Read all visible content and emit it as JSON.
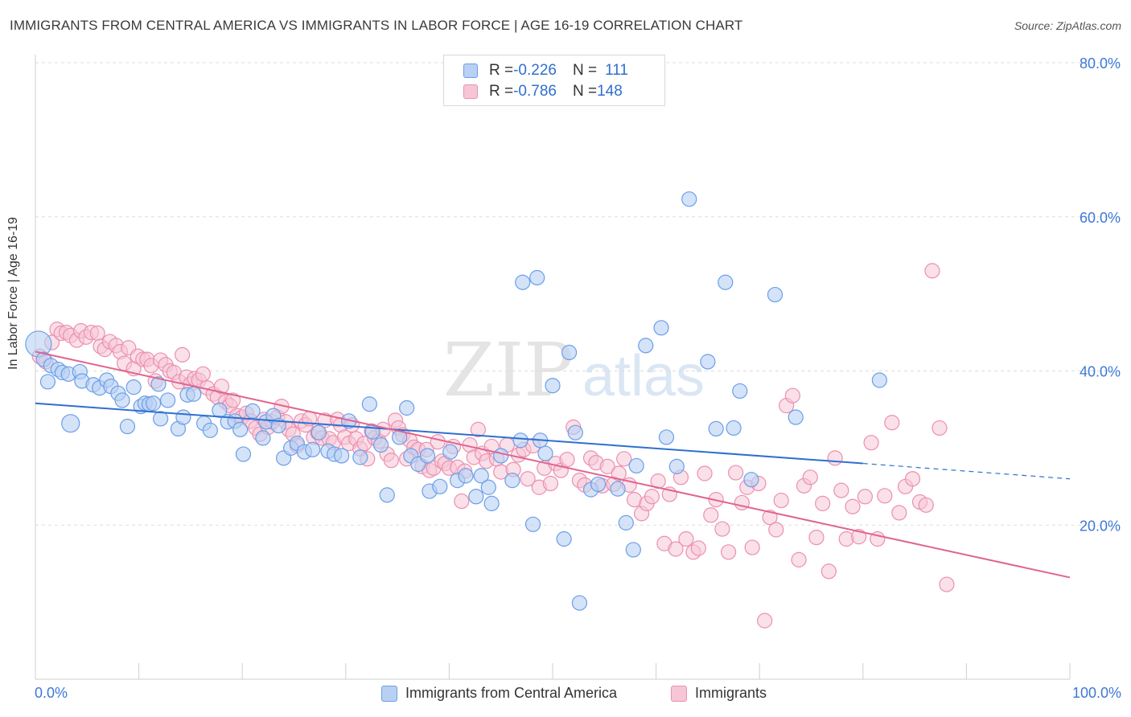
{
  "title": "IMMIGRANTS FROM CENTRAL AMERICA VS IMMIGRANTS IN LABOR FORCE | AGE 16-19 CORRELATION CHART",
  "source": "Source: ZipAtlas.com",
  "watermark": {
    "zip": "ZIP",
    "atlas": "atlas"
  },
  "colors": {
    "blue": "#6b9ee8",
    "blue_fill": "#b8d0f3",
    "blue_line": "#2f6fd0",
    "pink": "#ec8fb0",
    "pink_fill": "#f6c6d6",
    "pink_line": "#e0648f",
    "tick_text": "#3d78d6",
    "grid": "#dddddd"
  },
  "legend_top": {
    "rows": [
      {
        "r_label": "R = ",
        "r_value": "-0.226",
        "n_label": "N = ",
        "n_value": "111"
      },
      {
        "r_label": "R = ",
        "r_value": "-0.786",
        "n_label": "N = ",
        "n_value": "148"
      }
    ]
  },
  "chart_data": {
    "type": "scatter",
    "ylabel": "In Labor Force | Age 16-19",
    "xlim": [
      0,
      100
    ],
    "ylim": [
      0,
      80
    ],
    "x_tick_labels": [
      "0.0%",
      "100.0%"
    ],
    "y_tick_labels": [
      "20.0%",
      "40.0%",
      "60.0%",
      "80.0%"
    ],
    "y_ticks": [
      20,
      40,
      60,
      80
    ],
    "grid": "horizontal dashed",
    "legend": [
      "Immigrants from Central America",
      "Immigrants"
    ],
    "series": [
      {
        "name": "Immigrants from Central America",
        "color": "#6b9ee8",
        "trend": {
          "x1": 0,
          "y1": 35.8,
          "x2": 80,
          "y2": 28.0,
          "dashed_to_x": 100,
          "dashed_to_y": 26.0
        },
        "points": [
          [
            0.3,
            43.5
          ],
          [
            0.8,
            41.5
          ],
          [
            1.5,
            40.7
          ],
          [
            2.2,
            40.2
          ],
          [
            2.6,
            39.8
          ],
          [
            1.2,
            38.6
          ],
          [
            3.2,
            39.6
          ],
          [
            4.3,
            39.9
          ],
          [
            4.5,
            38.7
          ],
          [
            5.6,
            38.2
          ],
          [
            6.2,
            37.8
          ],
          [
            6.9,
            38.8
          ],
          [
            7.3,
            38.0
          ],
          [
            8.0,
            37.1
          ],
          [
            8.4,
            36.2
          ],
          [
            8.9,
            32.8
          ],
          [
            9.5,
            37.9
          ],
          [
            10.2,
            35.4
          ],
          [
            10.6,
            35.8
          ],
          [
            11.0,
            35.7
          ],
          [
            11.4,
            35.8
          ],
          [
            11.9,
            38.3
          ],
          [
            12.1,
            33.8
          ],
          [
            12.8,
            36.2
          ],
          [
            13.8,
            32.5
          ],
          [
            14.3,
            34.0
          ],
          [
            14.7,
            36.9
          ],
          [
            15.3,
            37.0
          ],
          [
            16.3,
            33.2
          ],
          [
            16.9,
            32.3
          ],
          [
            17.8,
            34.9
          ],
          [
            18.6,
            33.4
          ],
          [
            19.3,
            33.5
          ],
          [
            19.8,
            32.4
          ],
          [
            20.1,
            29.2
          ],
          [
            21.0,
            34.8
          ],
          [
            22.0,
            31.3
          ],
          [
            22.3,
            33.4
          ],
          [
            23.0,
            34.2
          ],
          [
            23.5,
            32.9
          ],
          [
            24.0,
            28.7
          ],
          [
            24.7,
            30.0
          ],
          [
            25.3,
            30.6
          ],
          [
            26.0,
            29.5
          ],
          [
            26.8,
            29.8
          ],
          [
            27.4,
            32.0
          ],
          [
            28.3,
            29.6
          ],
          [
            28.9,
            29.2
          ],
          [
            29.6,
            29.0
          ],
          [
            30.3,
            33.5
          ],
          [
            31.4,
            28.8
          ],
          [
            32.3,
            35.7
          ],
          [
            32.6,
            32.1
          ],
          [
            33.4,
            30.4
          ],
          [
            34.0,
            23.9
          ],
          [
            35.2,
            31.4
          ],
          [
            35.9,
            35.2
          ],
          [
            36.3,
            29.0
          ],
          [
            37.0,
            27.9
          ],
          [
            37.9,
            29.0
          ],
          [
            38.1,
            24.4
          ],
          [
            39.1,
            25.0
          ],
          [
            40.1,
            29.5
          ],
          [
            40.8,
            25.8
          ],
          [
            41.6,
            26.4
          ],
          [
            42.6,
            23.7
          ],
          [
            43.1,
            26.4
          ],
          [
            43.8,
            24.9
          ],
          [
            44.1,
            22.8
          ],
          [
            45.0,
            29.0
          ],
          [
            46.1,
            25.8
          ],
          [
            46.9,
            31.0
          ],
          [
            47.1,
            51.5
          ],
          [
            48.1,
            20.1
          ],
          [
            48.5,
            52.1
          ],
          [
            48.8,
            31.0
          ],
          [
            49.3,
            29.3
          ],
          [
            50.0,
            38.1
          ],
          [
            51.1,
            18.2
          ],
          [
            51.6,
            42.4
          ],
          [
            52.2,
            32.0
          ],
          [
            52.6,
            9.9
          ],
          [
            53.7,
            24.6
          ],
          [
            54.4,
            25.3
          ],
          [
            56.3,
            24.7
          ],
          [
            57.1,
            20.3
          ],
          [
            57.8,
            16.8
          ],
          [
            58.1,
            27.7
          ],
          [
            59.0,
            43.3
          ],
          [
            60.5,
            45.6
          ],
          [
            61.0,
            31.4
          ],
          [
            62.0,
            27.6
          ],
          [
            63.2,
            62.3
          ],
          [
            65.0,
            41.2
          ],
          [
            65.8,
            32.5
          ],
          [
            66.7,
            51.5
          ],
          [
            67.5,
            32.6
          ],
          [
            68.1,
            37.4
          ],
          [
            69.2,
            25.9
          ],
          [
            71.5,
            49.9
          ],
          [
            73.5,
            34.0
          ],
          [
            81.6,
            38.8
          ]
        ]
      },
      {
        "name": "Immigrants",
        "color": "#ec8fb0",
        "trend": {
          "x1": 0,
          "y1": 42.5,
          "x2": 100,
          "y2": 13.2
        },
        "points": [
          [
            0.4,
            41.9
          ],
          [
            1.0,
            41.2
          ],
          [
            1.6,
            43.7
          ],
          [
            2.1,
            45.4
          ],
          [
            2.5,
            44.9
          ],
          [
            3.0,
            45.0
          ],
          [
            3.4,
            44.6
          ],
          [
            4.0,
            44.0
          ],
          [
            4.4,
            45.2
          ],
          [
            4.9,
            44.4
          ],
          [
            5.4,
            45.0
          ],
          [
            6.0,
            44.9
          ],
          [
            6.3,
            43.2
          ],
          [
            6.7,
            42.8
          ],
          [
            7.2,
            43.8
          ],
          [
            7.8,
            43.3
          ],
          [
            8.2,
            42.5
          ],
          [
            8.6,
            41.0
          ],
          [
            9.0,
            43.0
          ],
          [
            9.5,
            40.3
          ],
          [
            9.9,
            41.9
          ],
          [
            10.4,
            41.5
          ],
          [
            10.8,
            41.5
          ],
          [
            11.2,
            40.7
          ],
          [
            11.6,
            38.7
          ],
          [
            12.1,
            41.4
          ],
          [
            12.6,
            40.8
          ],
          [
            13.0,
            40.0
          ],
          [
            13.4,
            39.8
          ],
          [
            13.9,
            38.6
          ],
          [
            14.2,
            42.1
          ],
          [
            14.6,
            39.2
          ],
          [
            15.0,
            38.3
          ],
          [
            15.4,
            39.0
          ],
          [
            15.8,
            38.8
          ],
          [
            16.2,
            39.6
          ],
          [
            16.6,
            37.8
          ],
          [
            17.2,
            37.0
          ],
          [
            17.6,
            36.6
          ],
          [
            18.0,
            38.0
          ],
          [
            18.4,
            36.0
          ],
          [
            18.8,
            35.5
          ],
          [
            19.1,
            36.2
          ],
          [
            19.5,
            34.2
          ],
          [
            20.0,
            34.0
          ],
          [
            20.4,
            34.5
          ],
          [
            20.8,
            33.5
          ],
          [
            21.3,
            32.6
          ],
          [
            21.7,
            31.8
          ],
          [
            22.1,
            33.7
          ],
          [
            22.5,
            32.7
          ],
          [
            22.9,
            33.4
          ],
          [
            23.4,
            34.0
          ],
          [
            23.8,
            35.4
          ],
          [
            24.2,
            33.4
          ],
          [
            24.5,
            32.4
          ],
          [
            24.9,
            31.8
          ],
          [
            25.3,
            30.3
          ],
          [
            25.7,
            33.5
          ],
          [
            26.1,
            33.0
          ],
          [
            26.5,
            33.8
          ],
          [
            26.9,
            31.4
          ],
          [
            27.3,
            32.0
          ],
          [
            27.7,
            31.3
          ],
          [
            28.0,
            33.6
          ],
          [
            28.4,
            31.2
          ],
          [
            28.8,
            30.7
          ],
          [
            29.2,
            33.7
          ],
          [
            29.5,
            33.0
          ],
          [
            29.9,
            31.4
          ],
          [
            30.3,
            30.6
          ],
          [
            30.6,
            33.0
          ],
          [
            31.0,
            31.2
          ],
          [
            31.4,
            29.9
          ],
          [
            31.8,
            30.6
          ],
          [
            32.1,
            28.6
          ],
          [
            32.5,
            32.2
          ],
          [
            32.8,
            31.3
          ],
          [
            33.2,
            30.9
          ],
          [
            33.6,
            32.4
          ],
          [
            34.0,
            29.2
          ],
          [
            34.4,
            28.4
          ],
          [
            34.8,
            33.6
          ],
          [
            35.1,
            32.6
          ],
          [
            35.5,
            31.7
          ],
          [
            35.9,
            28.6
          ],
          [
            36.2,
            31.0
          ],
          [
            36.6,
            30.1
          ],
          [
            37.0,
            29.8
          ],
          [
            37.4,
            27.6
          ],
          [
            37.8,
            29.8
          ],
          [
            38.1,
            27.1
          ],
          [
            38.5,
            27.4
          ],
          [
            38.9,
            30.8
          ],
          [
            39.3,
            28.3
          ],
          [
            39.6,
            28.0
          ],
          [
            40.0,
            27.4
          ],
          [
            40.4,
            30.2
          ],
          [
            40.8,
            27.5
          ],
          [
            41.2,
            23.1
          ],
          [
            41.5,
            27.0
          ],
          [
            42.0,
            30.4
          ],
          [
            42.4,
            28.8
          ],
          [
            42.8,
            32.4
          ],
          [
            43.2,
            29.3
          ],
          [
            43.6,
            28.3
          ],
          [
            44.1,
            30.2
          ],
          [
            44.6,
            28.6
          ],
          [
            45.0,
            26.9
          ],
          [
            45.6,
            30.4
          ],
          [
            46.2,
            27.2
          ],
          [
            46.7,
            29.1
          ],
          [
            47.2,
            29.8
          ],
          [
            47.6,
            26.0
          ],
          [
            48.1,
            30.3
          ],
          [
            48.7,
            24.9
          ],
          [
            49.2,
            27.4
          ],
          [
            49.8,
            25.4
          ],
          [
            50.3,
            28.0
          ],
          [
            50.8,
            27.1
          ],
          [
            51.4,
            28.5
          ],
          [
            52.0,
            32.7
          ],
          [
            52.6,
            25.8
          ],
          [
            53.1,
            25.2
          ],
          [
            53.7,
            28.7
          ],
          [
            54.2,
            28.1
          ],
          [
            54.8,
            25.1
          ],
          [
            55.3,
            27.6
          ],
          [
            55.9,
            25.3
          ],
          [
            56.4,
            26.7
          ],
          [
            56.9,
            28.6
          ],
          [
            57.4,
            25.2
          ],
          [
            57.9,
            23.3
          ],
          [
            58.6,
            21.5
          ],
          [
            59.1,
            22.8
          ],
          [
            59.6,
            23.7
          ],
          [
            60.2,
            25.7
          ],
          [
            60.8,
            17.6
          ],
          [
            61.3,
            24.0
          ],
          [
            61.9,
            16.9
          ],
          [
            62.4,
            26.2
          ],
          [
            62.9,
            18.2
          ],
          [
            63.6,
            16.5
          ],
          [
            64.1,
            17.0
          ],
          [
            64.7,
            26.7
          ],
          [
            65.3,
            21.3
          ],
          [
            65.8,
            23.3
          ],
          [
            66.4,
            19.5
          ],
          [
            67.0,
            16.5
          ],
          [
            67.7,
            26.8
          ],
          [
            68.3,
            22.9
          ],
          [
            68.8,
            24.9
          ],
          [
            69.3,
            17.1
          ],
          [
            69.9,
            25.4
          ],
          [
            70.5,
            7.6
          ],
          [
            71.0,
            21.0
          ],
          [
            71.6,
            19.4
          ],
          [
            72.1,
            23.2
          ],
          [
            72.6,
            35.5
          ],
          [
            73.2,
            36.8
          ],
          [
            73.8,
            15.5
          ],
          [
            74.3,
            25.1
          ],
          [
            74.9,
            26.2
          ],
          [
            75.5,
            18.4
          ],
          [
            76.1,
            22.8
          ],
          [
            76.7,
            14.0
          ],
          [
            77.3,
            28.7
          ],
          [
            77.9,
            24.5
          ],
          [
            78.4,
            18.2
          ],
          [
            79.0,
            22.4
          ],
          [
            79.6,
            18.5
          ],
          [
            80.2,
            23.7
          ],
          [
            80.8,
            30.7
          ],
          [
            81.4,
            18.2
          ],
          [
            82.1,
            23.8
          ],
          [
            82.8,
            33.3
          ],
          [
            83.5,
            21.6
          ],
          [
            84.1,
            25.0
          ],
          [
            84.8,
            26.0
          ],
          [
            85.5,
            23.0
          ],
          [
            86.1,
            22.6
          ],
          [
            86.7,
            53.0
          ],
          [
            87.4,
            32.6
          ],
          [
            88.1,
            12.3
          ]
        ]
      }
    ]
  }
}
